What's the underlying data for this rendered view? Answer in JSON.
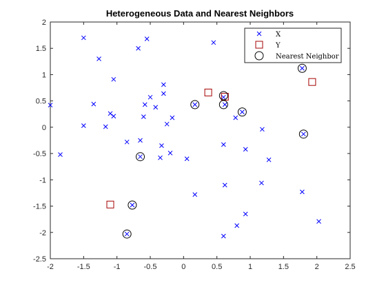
{
  "chart_data": {
    "type": "scatter",
    "title": "Heterogeneous Data and Nearest Neighbors",
    "xlabel": "",
    "ylabel": "",
    "xlim": [
      -2,
      2.5
    ],
    "ylim": [
      -2.5,
      2
    ],
    "xticks": [
      "-2",
      "-1.5",
      "-1",
      "-0.5",
      "0",
      "0.5",
      "1",
      "1.5",
      "2",
      "2.5"
    ],
    "yticks": [
      "2",
      "1.5",
      "1",
      "0.5",
      "0",
      "-0.5",
      "-1",
      "-1.5",
      "-2",
      "-2.5"
    ],
    "grid": false,
    "legend_position": "top-right",
    "series": [
      {
        "name": "X",
        "marker": "x",
        "color": "#0000ff",
        "points": [
          [
            -1.5,
            1.7
          ],
          [
            -0.55,
            1.68
          ],
          [
            -0.68,
            1.5
          ],
          [
            -1.27,
            1.3
          ],
          [
            0.45,
            1.61
          ],
          [
            -1.05,
            0.91
          ],
          [
            -0.3,
            0.81
          ],
          [
            -0.3,
            0.64
          ],
          [
            -0.5,
            0.57
          ],
          [
            -1.35,
            0.44
          ],
          [
            -2.0,
            0.42
          ],
          [
            -0.58,
            0.43
          ],
          [
            -0.42,
            0.38
          ],
          [
            -1.1,
            0.26
          ],
          [
            -1.05,
            0.21
          ],
          [
            -0.6,
            0.2
          ],
          [
            -0.17,
            0.18
          ],
          [
            -0.25,
            0.06
          ],
          [
            -1.5,
            0.03
          ],
          [
            -1.17,
            0.01
          ],
          [
            -0.85,
            -0.28
          ],
          [
            -0.65,
            -0.25
          ],
          [
            -0.33,
            -0.35
          ],
          [
            -1.85,
            -0.52
          ],
          [
            -0.2,
            -0.49
          ],
          [
            -0.35,
            -0.58
          ],
          [
            0.05,
            -0.6
          ],
          [
            0.6,
            -0.33
          ],
          [
            0.93,
            -0.42
          ],
          [
            1.28,
            -0.62
          ],
          [
            1.18,
            -0.04
          ],
          [
            0.78,
            0.18
          ],
          [
            0.6,
            0.57
          ],
          [
            0.62,
            0.43
          ],
          [
            0.62,
            -1.1
          ],
          [
            1.17,
            -1.06
          ],
          [
            0.17,
            -1.28
          ],
          [
            1.78,
            -1.23
          ],
          [
            0.93,
            -1.65
          ],
          [
            0.8,
            -1.87
          ],
          [
            0.6,
            -2.07
          ],
          [
            2.03,
            -1.79
          ],
          [
            -0.85,
            -2.03
          ],
          [
            -0.77,
            -1.48
          ],
          [
            -0.65,
            -0.56
          ],
          [
            0.17,
            0.43
          ],
          [
            0.88,
            0.29
          ],
          [
            1.78,
            1.12
          ],
          [
            1.8,
            -0.13
          ]
        ]
      },
      {
        "name": "Y",
        "marker": "square",
        "color": "#a50000",
        "points": [
          [
            0.37,
            0.66
          ],
          [
            0.62,
            0.58
          ],
          [
            1.93,
            0.86
          ],
          [
            -1.1,
            -1.47
          ]
        ]
      },
      {
        "name": "Nearest Neighbor",
        "marker": "circle",
        "color": "#000000",
        "points": [
          [
            0.6,
            0.6
          ],
          [
            0.17,
            0.43
          ],
          [
            0.6,
            0.43
          ],
          [
            0.88,
            0.29
          ],
          [
            1.78,
            1.12
          ],
          [
            1.8,
            -0.13
          ],
          [
            -0.65,
            -0.56
          ],
          [
            -0.77,
            -1.48
          ],
          [
            -0.85,
            -2.03
          ]
        ]
      }
    ]
  }
}
